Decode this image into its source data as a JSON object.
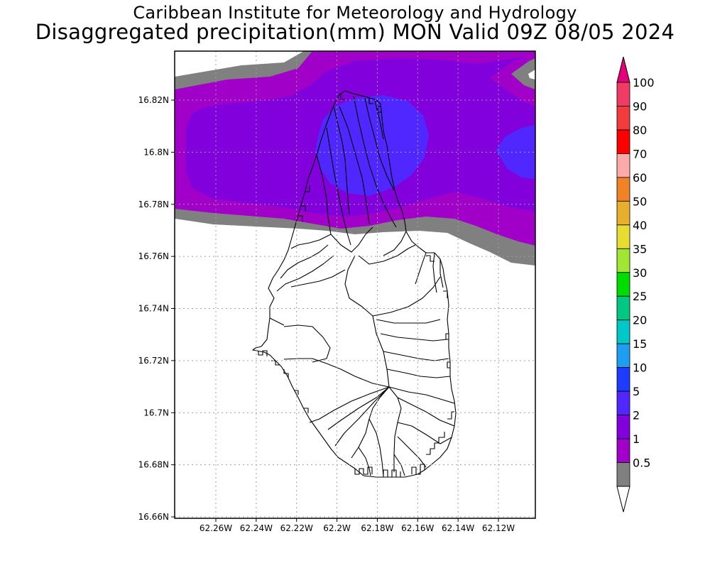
{
  "header": {
    "line1": "Caribbean Institute for Meteorology and Hydrology",
    "line2": "Disaggregated precipitation(mm) MON Valid 09Z 08/05 2024"
  },
  "map": {
    "region": "Montserrat",
    "lat_range": [
      16.66,
      16.84
    ],
    "lon_range": [
      -62.275,
      -62.105
    ],
    "lat_ticks": [
      "16.82N",
      "16.8N",
      "16.78N",
      "16.76N",
      "16.74N",
      "16.72N",
      "16.7N",
      "16.68N",
      "16.66N"
    ],
    "lon_ticks": [
      "62.26W",
      "62.24W",
      "62.22W",
      "62.2W",
      "62.18W",
      "62.16W",
      "62.14W",
      "62.12W"
    ],
    "grid": true
  },
  "colorbar": {
    "labels": [
      "100",
      "90",
      "80",
      "70",
      "60",
      "50",
      "40",
      "35",
      "30",
      "25",
      "20",
      "15",
      "10",
      "5",
      "2",
      "1",
      "0.5"
    ],
    "colors": [
      "#f03c64",
      "#f03c3c",
      "#ff0000",
      "#ffaaaa",
      "#f08228",
      "#e6af2d",
      "#e6dc32",
      "#a0e632",
      "#00dc00",
      "#00c882",
      "#00c8c8",
      "#1e9ef0",
      "#1e3cff",
      "#5028ff",
      "#8200dc",
      "#a000c8",
      "#808080"
    ],
    "top_arrow_color": "#e6007a",
    "bottom_arrow_color": "#ffffff"
  }
}
